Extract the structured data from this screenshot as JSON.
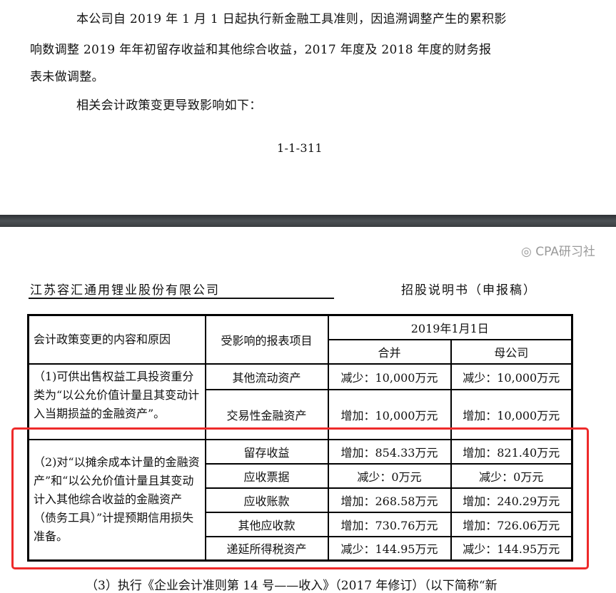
{
  "page1": {
    "paragraph1_lines": [
      "本公司自 2019 年 1 月 1 日起执行新金融工具准则，因追溯调整产生的累积影",
      "响数调整 2019 年年初留存收益和其他综合收益，2017 年度及 2018 年度的财务报",
      "表未做调整。"
    ],
    "paragraph2": "相关会计政策变更导致影响如下：",
    "page_number": "1-1-311"
  },
  "page2": {
    "company": "江苏容汇通用锂业股份有限公司",
    "doc_title": "招股说明书（申报稿）",
    "table": {
      "col_reason": "会计政策变更的内容和原因",
      "col_item": "受影响的报表项目",
      "col_date": "2019年1月1日",
      "col_consolidated": "合并",
      "col_parent": "母公司",
      "groups": [
        {
          "reason": "（1)可供出售权益工具投资重分类为“以公允价值计量且其变动计入当期损益的金融资产”。",
          "rows": [
            {
              "item": "其他流动资产",
              "consolidated": "减少：10,000万元",
              "parent": "减少：10,000万元"
            },
            {
              "item": "交易性金融资产",
              "consolidated": "增加：10,000万元",
              "parent": "增加：10,000万元"
            }
          ]
        },
        {
          "reason": "（2)对“以摊余成本计量的金融资产”和“以公允价值计量且其变动计入其他综合收益的金融资产（债务工具）”计提预期信用损失准备。",
          "rows": [
            {
              "item": "留存收益",
              "consolidated": "增加：854.33万元",
              "parent": "增加：821.40万元"
            },
            {
              "item": "应收票据",
              "consolidated": "减少：0万元",
              "parent": "减少：0万元"
            },
            {
              "item": "应收账款",
              "consolidated": "增加：268.58万元",
              "parent": "增加：240.29万元"
            },
            {
              "item": "其他应收款",
              "consolidated": "增加：730.76万元",
              "parent": "增加：726.06万元"
            },
            {
              "item": "递延所得税资产",
              "consolidated": "减少：144.95万元",
              "parent": "减少：144.95万元"
            }
          ]
        }
      ]
    },
    "next_paragraph": "（3）执行《企业会计准则第 14 号——收入》（2017 年修订）（以下简称“新"
  },
  "highlight_color": "#ee2a2a",
  "watermark": "CPA研习社"
}
